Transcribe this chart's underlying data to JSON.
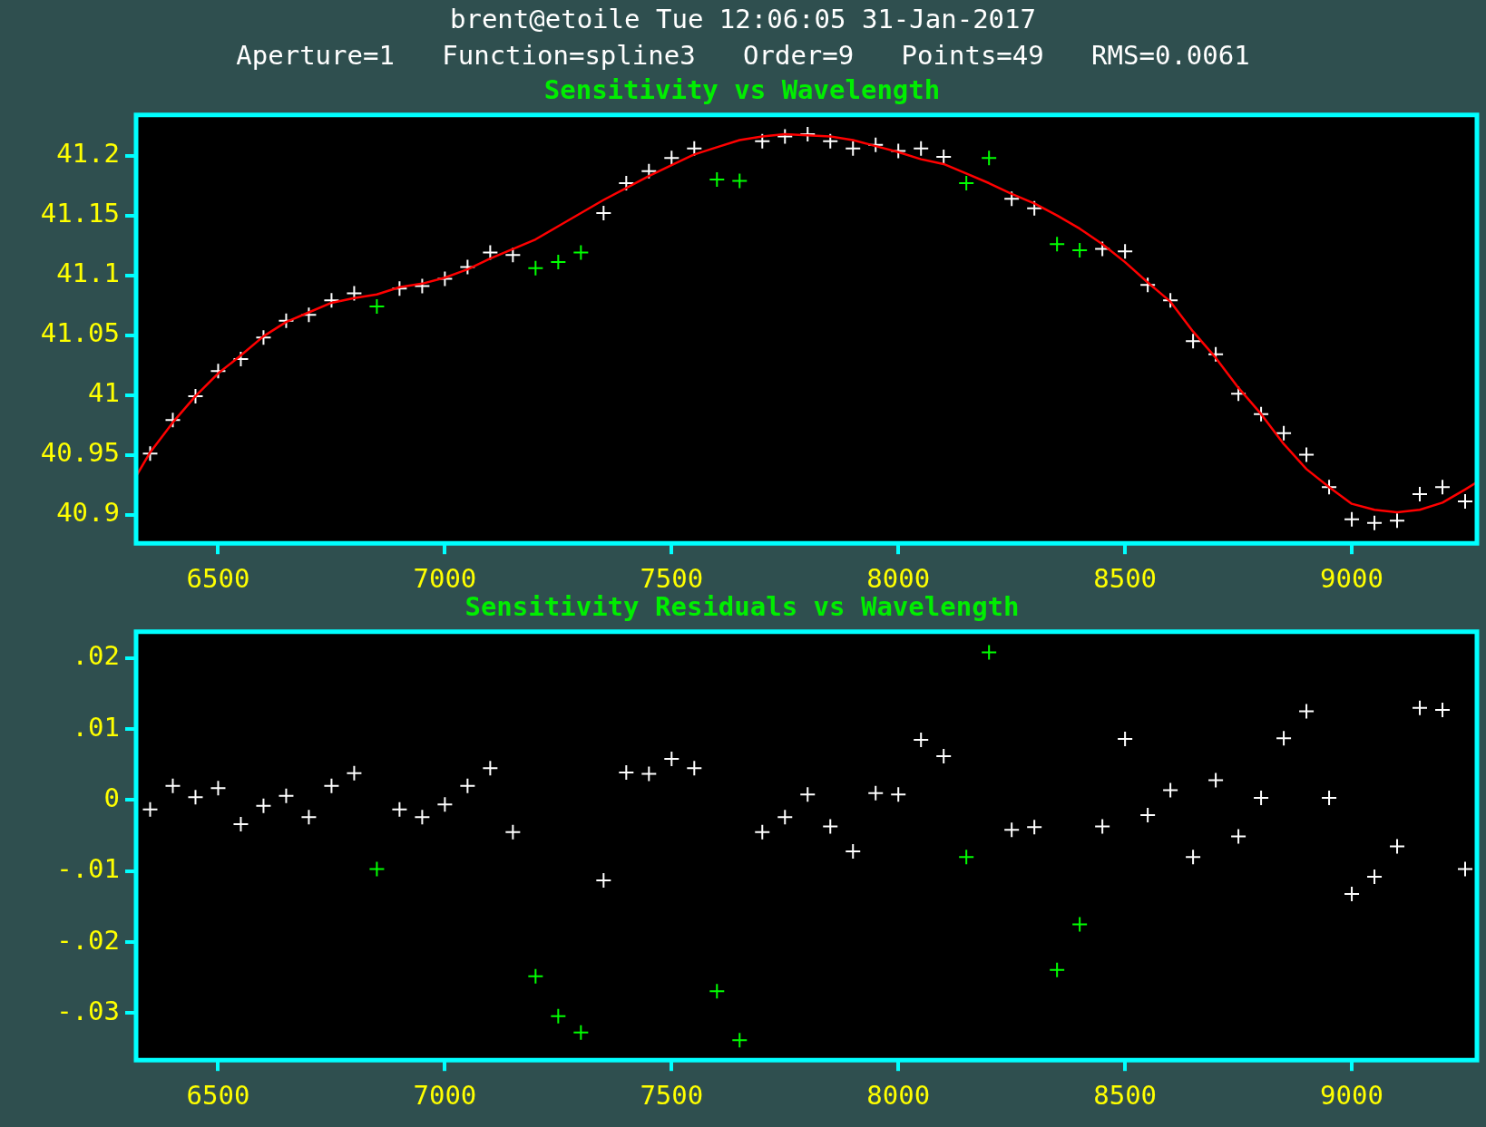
{
  "chart_data": [
    {
      "type": "scatter",
      "title": "Sensitivity vs Wavelength",
      "annotations": [
        "brent@etoile Tue 12:06:05 31-Jan-2017",
        "Aperture=1   Function=spline3   Order=9   Points=49   RMS=0.0061"
      ],
      "xlim": [
        6319,
        9276
      ],
      "xticks": [
        6500,
        7000,
        7500,
        8000,
        8500,
        9000
      ],
      "ylim": [
        40.876,
        41.234
      ],
      "yticks": [
        40.9,
        40.95,
        41,
        41.05,
        41.1,
        41.15,
        41.2
      ],
      "marker": "cross",
      "legend": false,
      "series": [
        {
          "color": "#ffffff",
          "x": [
            6350,
            6400,
            6450,
            6500,
            6550,
            6600,
            6650,
            6700,
            6750,
            6800,
            6900,
            6950,
            7000,
            7050,
            7100,
            7150,
            7350,
            7400,
            7450,
            7500,
            7550,
            7700,
            7750,
            7800,
            7850,
            7900,
            7950,
            8000,
            8050,
            8100,
            8250,
            8300,
            8450,
            8500,
            8550,
            8600,
            8650,
            8700,
            8750,
            8800,
            8850,
            8900,
            8950,
            9000,
            9050,
            9100,
            9150,
            9200,
            9250
          ],
          "values": [
            40.951,
            40.979,
            40.999,
            41.02,
            41.03,
            41.048,
            41.062,
            41.067,
            41.079,
            41.085,
            41.089,
            41.091,
            41.097,
            41.107,
            41.119,
            41.117,
            41.152,
            41.177,
            41.187,
            41.198,
            41.206,
            41.212,
            41.216,
            41.218,
            41.212,
            41.206,
            41.209,
            41.204,
            41.206,
            41.199,
            41.164,
            41.156,
            41.122,
            41.12,
            41.092,
            41.079,
            41.045,
            41.034,
            41.001,
            40.984,
            40.968,
            40.95,
            40.923,
            40.896,
            40.893,
            40.895,
            40.917,
            40.923,
            40.911
          ]
        },
        {
          "color": "#00ff00",
          "x": [
            6850,
            7200,
            7250,
            7300,
            7600,
            7650,
            8150,
            8200,
            8350,
            8400
          ],
          "values": [
            41.074,
            41.106,
            41.111,
            41.119,
            41.18,
            41.179,
            41.177,
            41.198,
            41.126,
            41.121
          ]
        },
        {
          "type": "line",
          "color": "#ff0000",
          "marker": "none",
          "line_style": "solid",
          "x": [
            6319,
            6350,
            6400,
            6450,
            6500,
            6550,
            6600,
            6650,
            6700,
            6750,
            6800,
            6850,
            6900,
            6950,
            7000,
            7050,
            7100,
            7150,
            7200,
            7250,
            7300,
            7350,
            7400,
            7450,
            7500,
            7550,
            7600,
            7650,
            7700,
            7750,
            7800,
            7850,
            7900,
            7950,
            8000,
            8050,
            8100,
            8150,
            8200,
            8250,
            8300,
            8350,
            8400,
            8450,
            8500,
            8550,
            8600,
            8650,
            8700,
            8750,
            8800,
            8850,
            8900,
            8950,
            9000,
            9050,
            9100,
            9150,
            9200,
            9250,
            9276
          ],
          "values": [
            40.932,
            40.952,
            40.977,
            40.999,
            41.018,
            41.033,
            41.049,
            41.061,
            41.069,
            41.077,
            41.081,
            41.084,
            41.09,
            41.093,
            41.098,
            41.105,
            41.114,
            41.122,
            41.13,
            41.141,
            41.152,
            41.163,
            41.173,
            41.183,
            41.192,
            41.201,
            41.207,
            41.213,
            41.216,
            41.218,
            41.217,
            41.216,
            41.213,
            41.208,
            41.203,
            41.197,
            41.193,
            41.185,
            41.177,
            41.168,
            41.16,
            41.15,
            41.139,
            41.126,
            41.111,
            41.094,
            41.078,
            41.053,
            41.031,
            41.006,
            40.984,
            40.959,
            40.938,
            40.923,
            40.909,
            40.904,
            40.902,
            40.904,
            40.91,
            40.921,
            40.927
          ]
        }
      ]
    },
    {
      "type": "scatter",
      "title": "Sensitivity Residuals vs Wavelength",
      "xlim": [
        6319,
        9276
      ],
      "xticks": [
        6500,
        7000,
        7500,
        8000,
        8500,
        9000
      ],
      "ylim": [
        -0.0366,
        0.0237
      ],
      "yticks": [
        {
          "value": 0.02,
          "label": ".02"
        },
        {
          "value": 0.01,
          "label": ".01"
        },
        0,
        {
          "value": -0.01,
          "label": "-.01"
        },
        {
          "value": -0.02,
          "label": "-.02"
        },
        {
          "value": -0.03,
          "label": "-.03"
        }
      ],
      "marker": "cross",
      "legend": false,
      "series": [
        {
          "color": "#ffffff",
          "x": [
            6350,
            6400,
            6450,
            6500,
            6550,
            6600,
            6650,
            6700,
            6750,
            6800,
            6900,
            6950,
            7000,
            7050,
            7100,
            7150,
            7350,
            7400,
            7450,
            7500,
            7550,
            7700,
            7750,
            7800,
            7850,
            7900,
            7950,
            8000,
            8050,
            8100,
            8250,
            8300,
            8450,
            8500,
            8550,
            8600,
            8650,
            8700,
            8750,
            8800,
            8850,
            8900,
            8950,
            9000,
            9050,
            9100,
            9150,
            9200,
            9250
          ],
          "values": [
            -0.0013,
            0.002,
            0.0004,
            0.0017,
            -0.0034,
            -0.0008,
            0.0006,
            -0.0024,
            0.002,
            0.0038,
            -0.0013,
            -0.0024,
            -0.0006,
            0.002,
            0.0045,
            -0.0045,
            -0.0113,
            0.0039,
            0.0037,
            0.0058,
            0.0045,
            -0.0045,
            -0.0024,
            0.0008,
            -0.0037,
            -0.0072,
            0.001,
            0.0008,
            0.0085,
            0.0062,
            -0.0042,
            -0.0038,
            -0.0037,
            0.0086,
            -0.0021,
            0.0014,
            -0.008,
            0.0028,
            -0.0051,
            0.0003,
            0.0087,
            0.0125,
            0.0003,
            -0.0132,
            -0.0108,
            -0.0065,
            0.013,
            0.0127,
            -0.0097
          ]
        },
        {
          "color": "#00ff00",
          "x": [
            6850,
            7200,
            7250,
            7300,
            7600,
            7650,
            8150,
            8200,
            8350,
            8400
          ],
          "values": [
            -0.0097,
            -0.0248,
            -0.0304,
            -0.0327,
            -0.0269,
            -0.0338,
            -0.008,
            0.0208,
            -0.0239,
            -0.0175
          ]
        }
      ]
    }
  ]
}
